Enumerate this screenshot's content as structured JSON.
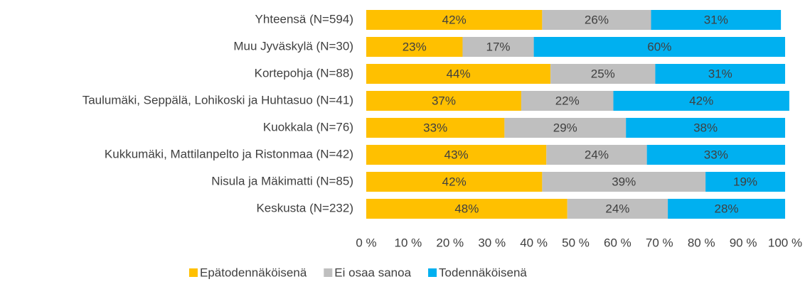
{
  "chart_data": {
    "type": "stacked_bar_horizontal",
    "categories": [
      "Yhteensä (N=594)",
      "Muu Jyväskylä (N=30)",
      "Kortepohja (N=88)",
      "Taulumäki, Seppälä, Lohikoski ja Huhtasuo (N=41)",
      "Kuokkala (N=76)",
      "Kukkumäki, Mattilanpelto ja Ristonmaa (N=42)",
      "Nisula ja Mäkimatti (N=85)",
      "Keskusta (N=232)"
    ],
    "series": [
      {
        "name": "Epätodennäköisenä",
        "color": "#FFC000",
        "values": [
          42,
          23,
          44,
          37,
          33,
          43,
          42,
          48
        ],
        "value_labels": [
          "42%",
          "23%",
          "44%",
          "37%",
          "33%",
          "43%",
          "42%",
          "48%"
        ]
      },
      {
        "name": "Ei osaa sanoa",
        "color": "#BFBFBF",
        "values": [
          26,
          17,
          25,
          22,
          29,
          24,
          39,
          24
        ],
        "value_labels": [
          "26%",
          "17%",
          "25%",
          "22%",
          "29%",
          "24%",
          "39%",
          "24%"
        ]
      },
      {
        "name": "Todennäköisenä",
        "color": "#00B0F0",
        "values": [
          31,
          60,
          31,
          42,
          38,
          33,
          19,
          28
        ],
        "value_labels": [
          "31%",
          "60%",
          "31%",
          "42%",
          "38%",
          "33%",
          "19%",
          "28%"
        ]
      }
    ],
    "xlim": [
      0,
      100
    ],
    "xticks": [
      {
        "value": 0,
        "label": "0 %"
      },
      {
        "value": 10,
        "label": "10 %"
      },
      {
        "value": 20,
        "label": "20 %"
      },
      {
        "value": 30,
        "label": "30 %"
      },
      {
        "value": 40,
        "label": "40 %"
      },
      {
        "value": 50,
        "label": "50 %"
      },
      {
        "value": 60,
        "label": "60 %"
      },
      {
        "value": 70,
        "label": "70 %"
      },
      {
        "value": 80,
        "label": "80 %"
      },
      {
        "value": 90,
        "label": "90 %"
      },
      {
        "value": 100,
        "label": "100 %"
      }
    ],
    "legend": "bottom"
  }
}
